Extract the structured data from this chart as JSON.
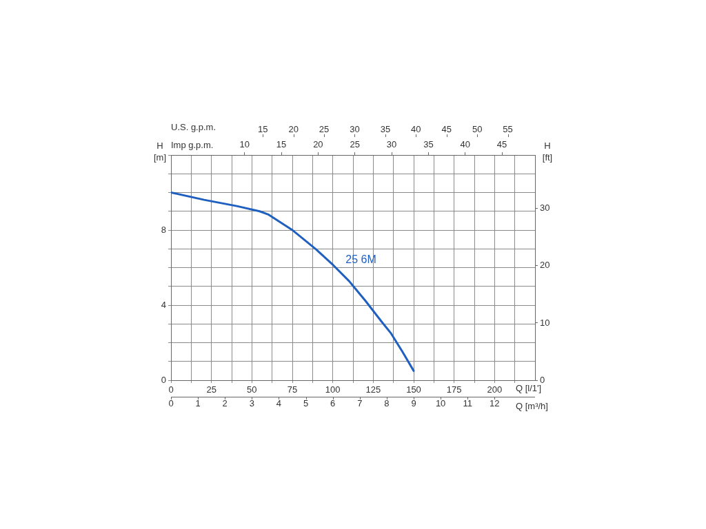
{
  "chart_data": [
    {
      "type": "line",
      "xlabel": "Q [l/1']",
      "x2label": "Imp g.p.m.",
      "ylabel": "H [m]",
      "xlim": [
        0,
        225
      ],
      "xticks": [
        0,
        {
          "value": 12.5,
          "label": null
        },
        25,
        {
          "value": 37.5,
          "label": null
        },
        50,
        {
          "value": 62.5,
          "label": null
        },
        75,
        {
          "value": 87.5,
          "label": null
        },
        100,
        {
          "value": 112.5,
          "label": null
        },
        125,
        {
          "value": 137.5,
          "label": null
        },
        150,
        {
          "value": 162.5,
          "label": null
        },
        175,
        {
          "value": 187.5,
          "label": null
        },
        200,
        {
          "value": 212.5,
          "label": null
        }
      ],
      "x2lim": [
        0,
        49.49
      ],
      "x2ticks": [
        10,
        15,
        20,
        25,
        30,
        35,
        40,
        45
      ],
      "ylim": [
        0,
        12
      ],
      "yticks": [
        0,
        {
          "value": 1,
          "label": null
        },
        {
          "value": 2,
          "label": null
        },
        {
          "value": 3,
          "label": null
        },
        4,
        {
          "value": 5,
          "label": null
        },
        {
          "value": 6,
          "label": null
        },
        {
          "value": 7,
          "label": null
        },
        8,
        {
          "value": 9,
          "label": null
        },
        {
          "value": 10,
          "label": null
        },
        {
          "value": 11,
          "label": null
        },
        {
          "value": 12,
          "label": null
        }
      ],
      "series": [
        {
          "color": "#1f5fc0",
          "x": [
            0,
            20.5,
            40.6,
            54.8,
            60.4,
            74.7,
            89.6,
            100.3,
            110.2,
            120.2,
            130.1,
            135.8,
            142.9,
            150
          ],
          "values": [
            10.0,
            9.61,
            9.28,
            9.0,
            8.82,
            8.02,
            6.98,
            6.13,
            5.27,
            4.23,
            3.13,
            2.52,
            1.54,
            0.5
          ]
        }
      ],
      "annotations": [
        "25 6M"
      ],
      "grid": true,
      "legend": false,
      "marker": "none",
      "line_style": "solid"
    },
    {
      "type": "line",
      "xlabel": "Q [m³/h]",
      "x2label": "U.S. g.p.m.",
      "y2label": "H [ft]",
      "xlim": [
        0,
        13.5
      ],
      "xticks": [
        0,
        1,
        2,
        3,
        4,
        5,
        6,
        7,
        8,
        9,
        10,
        11,
        12
      ],
      "x2lim": [
        0,
        59.44
      ],
      "x2ticks": [
        15,
        20,
        25,
        30,
        35,
        40,
        45,
        50,
        55
      ],
      "y2lim": [
        0,
        39.37
      ],
      "y2ticks": [
        0,
        10,
        20,
        30
      ]
    }
  ]
}
